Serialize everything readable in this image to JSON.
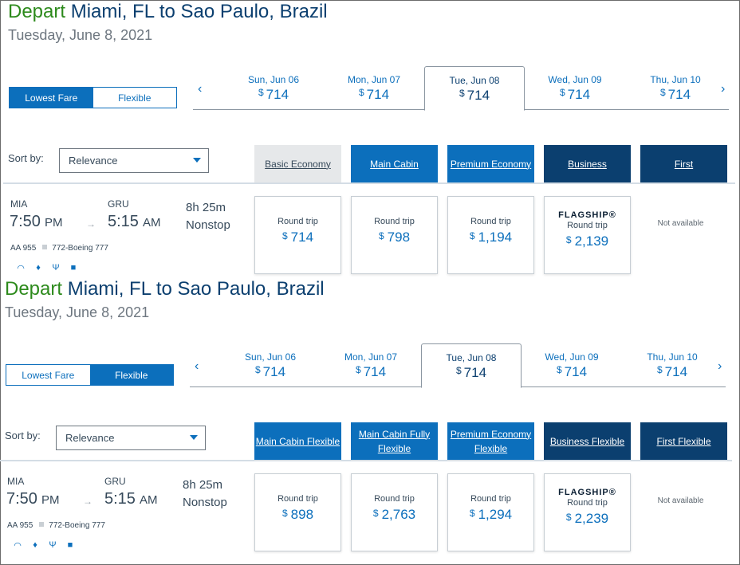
{
  "sections": [
    {
      "title_depart": "Depart",
      "title_route": "Miami, FL to Sao Paulo, Brazil",
      "subtitle": "Tuesday, June 8, 2021",
      "toggle": {
        "lowest_fare": "Lowest Fare",
        "flexible": "Flexible",
        "active": "lowest_fare"
      },
      "dates": [
        {
          "label": "Sun, Jun 06",
          "currency": "$",
          "price": "714"
        },
        {
          "label": "Mon, Jun 07",
          "currency": "$",
          "price": "714"
        },
        {
          "label": "Tue, Jun 08",
          "currency": "$",
          "price": "714",
          "selected": true
        },
        {
          "label": "Wed, Jun 09",
          "currency": "$",
          "price": "714"
        },
        {
          "label": "Thu, Jun 10",
          "currency": "$",
          "price": "714"
        }
      ],
      "sort_label": "Sort by:",
      "sort_value": "Relevance",
      "cabins": [
        "Basic Economy",
        "Main Cabin",
        "Premium Economy",
        "Business",
        "First"
      ],
      "flight": {
        "from_code": "MIA",
        "to_code": "GRU",
        "depart_time": "7:50",
        "depart_ampm": "PM",
        "arrive_time": "5:15",
        "arrive_ampm": "AM",
        "duration": "8h  25m",
        "stops": "Nonstop",
        "flight_no": "AA 955",
        "aircraft": "772-Boeing 777"
      },
      "fares": [
        {
          "label": "Round trip",
          "currency": "$",
          "price": "714"
        },
        {
          "label": "Round trip",
          "currency": "$",
          "price": "798"
        },
        {
          "label": "Round trip",
          "currency": "$",
          "price": "1,194"
        },
        {
          "brand": "FLAGSHIP®",
          "label": "Round trip",
          "currency": "$",
          "price": "2,139"
        }
      ],
      "not_available": "Not available"
    },
    {
      "title_depart": "Depart",
      "title_route": "Miami, FL to Sao Paulo, Brazil",
      "subtitle": "Tuesday, June 8, 2021",
      "toggle": {
        "lowest_fare": "Lowest Fare",
        "flexible": "Flexible",
        "active": "flexible"
      },
      "dates": [
        {
          "label": "Sun, Jun 06",
          "currency": "$",
          "price": "714"
        },
        {
          "label": "Mon, Jun 07",
          "currency": "$",
          "price": "714"
        },
        {
          "label": "Tue, Jun 08",
          "currency": "$",
          "price": "714",
          "selected": true
        },
        {
          "label": "Wed, Jun 09",
          "currency": "$",
          "price": "714"
        },
        {
          "label": "Thu, Jun 10",
          "currency": "$",
          "price": "714"
        }
      ],
      "sort_label": "Sort by:",
      "sort_value": "Relevance",
      "cabins": [
        "Main Cabin Flexible",
        "Main Cabin Fully Flexible",
        "Premium Economy Flexible",
        "Business Flexible",
        "First Flexible"
      ],
      "flight": {
        "from_code": "MIA",
        "to_code": "GRU",
        "depart_time": "7:50",
        "depart_ampm": "PM",
        "arrive_time": "5:15",
        "arrive_ampm": "AM",
        "duration": "8h  25m",
        "stops": "Nonstop",
        "flight_no": "AA 955",
        "aircraft": "772-Boeing 777"
      },
      "fares": [
        {
          "label": "Round trip",
          "currency": "$",
          "price": "898"
        },
        {
          "label": "Round trip",
          "currency": "$",
          "price": "2,763"
        },
        {
          "label": "Round trip",
          "currency": "$",
          "price": "1,294"
        },
        {
          "brand": "FLAGSHIP®",
          "label": "Round trip",
          "currency": "$",
          "price": "2,239"
        }
      ],
      "not_available": "Not available"
    }
  ],
  "amenity_icons": [
    "wifi-icon",
    "power-outlet-icon",
    "usb-icon",
    "entertainment-icon"
  ],
  "colors": {
    "accent_blue": "#0c6fbc",
    "navy": "#0b3f6f",
    "depart_green": "#2d8a1c"
  }
}
